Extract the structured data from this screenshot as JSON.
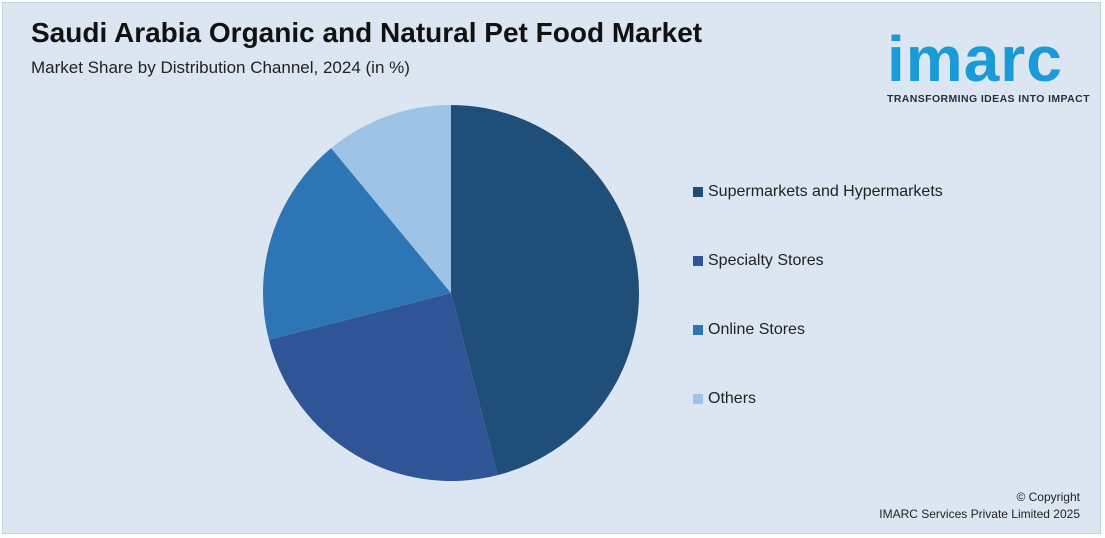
{
  "header": {
    "title": "Saudi Arabia Organic and Natural Pet Food Market",
    "subtitle": "Market Share by Distribution Channel, 2024 (in %)"
  },
  "logo": {
    "wordmark": "imarc",
    "tagline": "TRANSFORMING IDEAS INTO IMPACT",
    "color": "#1a9ad6"
  },
  "footer": {
    "copyright": "© Copyright",
    "company": "IMARC Services Private Limited 2025"
  },
  "chart_data": {
    "type": "pie",
    "title": "Saudi Arabia Organic and Natural Pet Food Market",
    "subtitle": "Market Share by Distribution Channel, 2024 (in %)",
    "legend_position": "right",
    "slices": [
      {
        "label": "Supermarkets and Hypermarkets",
        "value": 46,
        "color": "#1f4e79"
      },
      {
        "label": "Specialty Stores",
        "value": 25,
        "color": "#2f5597"
      },
      {
        "label": "Online Stores",
        "value": 18,
        "color": "#2e75b6"
      },
      {
        "label": "Others",
        "value": 11,
        "color": "#9dc3e6"
      }
    ]
  }
}
